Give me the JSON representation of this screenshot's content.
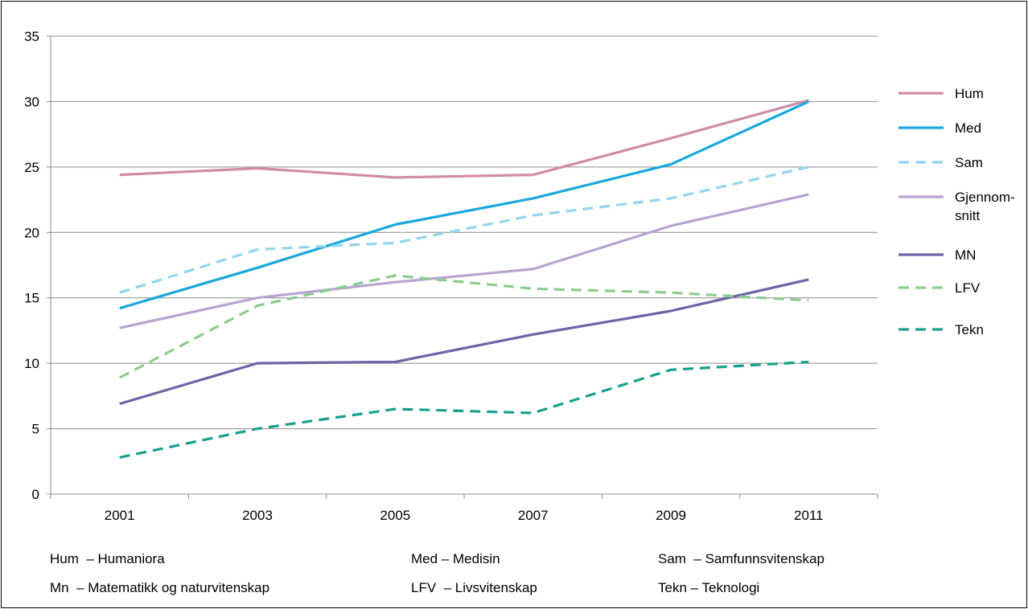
{
  "chart_data": {
    "type": "line",
    "x": [
      "2001",
      "2003",
      "2005",
      "2007",
      "2009",
      "2011"
    ],
    "ylim": [
      0,
      35
    ],
    "yticks": [
      0,
      5,
      10,
      15,
      20,
      25,
      30,
      35
    ],
    "grid": true,
    "legend_position": "right",
    "series": [
      {
        "name": "Hum",
        "values": [
          24.4,
          24.9,
          24.2,
          24.4,
          27.2,
          30.1
        ],
        "color": "#d08ca6",
        "dashed": false
      },
      {
        "name": "Med",
        "values": [
          14.2,
          17.3,
          20.6,
          22.6,
          25.2,
          30.0
        ],
        "color": "#1aa7dd",
        "dashed": false
      },
      {
        "name": "Sam",
        "values": [
          15.4,
          18.7,
          19.2,
          21.3,
          22.6,
          25.0
        ],
        "color": "#93d5ee",
        "dashed": true
      },
      {
        "name": "Gjennom-snitt",
        "values": [
          12.7,
          15.0,
          16.2,
          17.2,
          20.5,
          22.9
        ],
        "color": "#b9a3d0",
        "dashed": false
      },
      {
        "name": "MN",
        "values": [
          6.9,
          10.0,
          10.1,
          12.2,
          14.0,
          16.4
        ],
        "color": "#6c64a6",
        "dashed": false
      },
      {
        "name": "LFV",
        "values": [
          8.9,
          14.4,
          16.7,
          15.7,
          15.4,
          14.8
        ],
        "color": "#8dcb8f",
        "dashed": true
      },
      {
        "name": "Tekn",
        "values": [
          2.8,
          5.0,
          6.5,
          6.2,
          9.5,
          10.1
        ],
        "color": "#16a08c",
        "dashed": true
      }
    ],
    "legend_labels": [
      {
        "lines": [
          "Hum"
        ]
      },
      {
        "lines": [
          "Med"
        ]
      },
      {
        "lines": [
          "Sam"
        ]
      },
      {
        "lines": [
          "Gjennom-",
          "snitt"
        ]
      },
      {
        "lines": [
          "MN"
        ]
      },
      {
        "lines": [
          "LFV"
        ]
      },
      {
        "lines": [
          "Tekn"
        ]
      }
    ]
  },
  "footnotes": {
    "row1": {
      "hum": "Hum  – Humaniora",
      "med": "Med – Medisin",
      "sam": "Sam  – Samfunnsvitenskap"
    },
    "row2": {
      "mn": "Mn  – Matematikk og naturvitenskap",
      "lfv": "LFV  – Livsvitenskap",
      "tekn": "Tekn – Teknologi"
    }
  }
}
